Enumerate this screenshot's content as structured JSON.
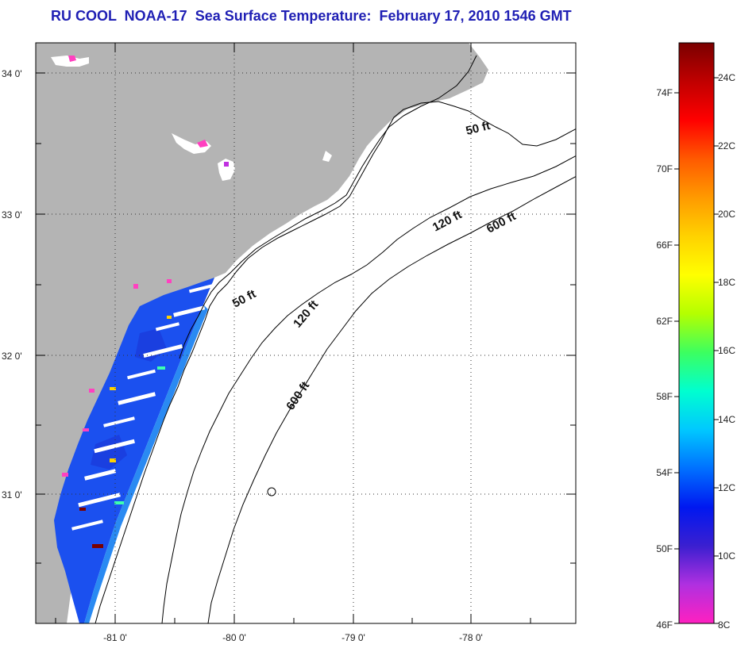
{
  "title": "RU COOL  NOAA-17  Sea Surface Temperature:  February 17, 2010 1546 GMT",
  "map": {
    "lat_labels": [
      "34 0'",
      "33 0'",
      "32 0'",
      "31 0'"
    ],
    "lon_labels": [
      "-81 0'",
      "-80 0'",
      "-79 0'",
      "-78 0'"
    ],
    "isobath_labels": [
      "50 ft",
      "50 ft",
      "120 ft",
      "120 ft",
      "600 ft",
      "600 ft"
    ],
    "colors": {
      "land": "#b4b4b4",
      "ocean": "#ffffff",
      "sst_main": "#1b50ef",
      "sst_light": "#2a8af2",
      "sst_mid": "#1a3fe0"
    }
  },
  "colorbar": {
    "fahrenheit_labels": [
      "74F",
      "70F",
      "66F",
      "62F",
      "58F",
      "54F",
      "50F",
      "46F"
    ],
    "celsius_labels": [
      "24C",
      "22C",
      "20C",
      "18C",
      "16C",
      "14C",
      "12C",
      "10C",
      "8C"
    ],
    "gradient": [
      "#7a0000",
      "#c00000",
      "#ff0000",
      "#ff5a00",
      "#ff9a00",
      "#ffd200",
      "#ffff00",
      "#b4ff00",
      "#3cff60",
      "#00ffd0",
      "#00c8ff",
      "#0070ff",
      "#0018f0",
      "#3b1fd0",
      "#b030e0",
      "#ff20c0"
    ]
  }
}
